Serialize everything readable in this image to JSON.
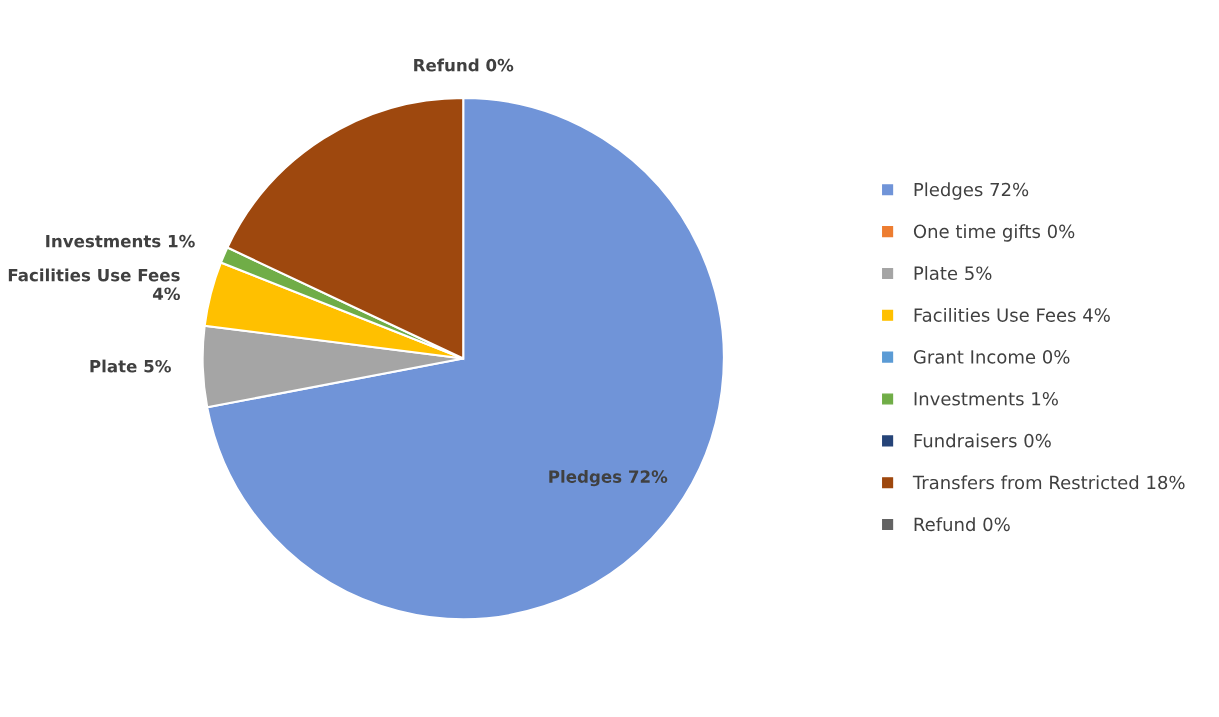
{
  "chart_data": {
    "type": "pie",
    "categories": [
      "Pledges 72%",
      "One time gifts 0%",
      "Plate 5%",
      "Facilities Use Fees 4%",
      "Grant Income 0%",
      "Investments 1%",
      "Fundraisers 0%",
      "Transfers from Restricted 18%",
      "Refund 0%"
    ],
    "values": [
      72,
      0,
      5,
      4,
      0,
      1,
      0,
      18,
      0
    ],
    "colors": [
      "#7094d8",
      "#ed7d31",
      "#a5a5a5",
      "#ffc000",
      "#5b9bd5",
      "#70ad47",
      "#264478",
      "#9e480e",
      "#636363"
    ],
    "value_labels": [
      "Pledges 72%",
      null,
      "Plate 5%",
      "Facilities Use Fees 4%",
      null,
      "Investments 1%",
      null,
      null,
      "Refund 0%"
    ],
    "legend": "right"
  }
}
